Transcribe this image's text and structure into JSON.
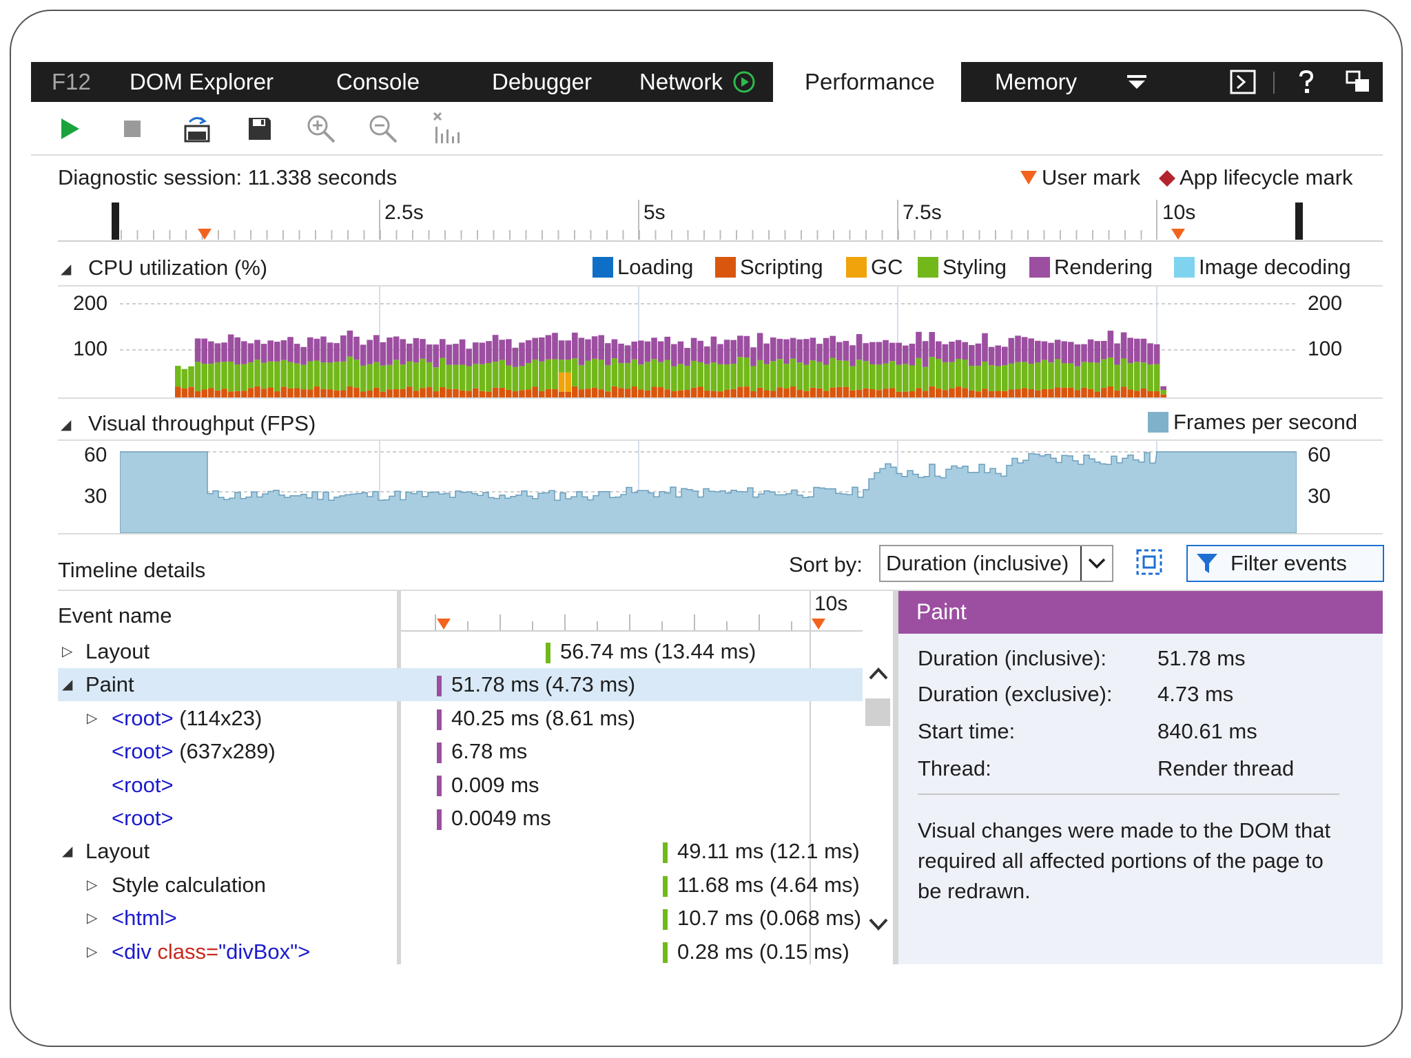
{
  "tabs": {
    "f12": "F12",
    "dom_explorer": "DOM Explorer",
    "console": "Console",
    "debugger": "Debugger",
    "network": "Network",
    "performance": "Performance",
    "memory": "Memory"
  },
  "header": {
    "session_title": "Diagnostic session: 11.338 seconds",
    "user_mark": "User mark",
    "app_mark": "App lifecycle mark"
  },
  "ruler": {
    "ticks": [
      "2.5s",
      "5s",
      "7.5s",
      "10s"
    ]
  },
  "cpu": {
    "title": "CPU utilization (%)",
    "legend": [
      {
        "label": "Loading",
        "color": "#0f6fc6"
      },
      {
        "label": "Scripting",
        "color": "#d9560e"
      },
      {
        "label": "GC",
        "color": "#f0a30a"
      },
      {
        "label": "Styling",
        "color": "#72b81b"
      },
      {
        "label": "Rendering",
        "color": "#9c4fa0"
      },
      {
        "label": "Image decoding",
        "color": "#7fd3ee"
      }
    ],
    "y_labels": [
      "200",
      "100"
    ]
  },
  "fps": {
    "title": "Visual throughput (FPS)",
    "legend_label": "Frames per second",
    "legend_color": "#7fb1cb",
    "y_labels": [
      "60",
      "30"
    ]
  },
  "details": {
    "title": "Timeline details",
    "sort_label": "Sort by:",
    "sort_value": "Duration (inclusive)",
    "filter_label": "Filter events",
    "event_name_header": "Event name",
    "timeline_tick": "10s",
    "rows": [
      {
        "indent": 0,
        "tri": "▷",
        "text": "Layout",
        "bar": "56.74 ms (13.44 ms)",
        "color": "#72b81b"
      },
      {
        "indent": 0,
        "tri": "◢",
        "text": "Paint",
        "bar": "51.78 ms (4.73 ms)",
        "color": "#9c4fa0"
      },
      {
        "indent": 1,
        "tri": "▷",
        "tag": "<root>",
        "extra": " (114x23)",
        "bar": "40.25 ms (8.61 ms)",
        "color": "#9c4fa0"
      },
      {
        "indent": 1,
        "tri": "",
        "tag": "<root>",
        "extra": " (637x289)",
        "bar": "6.78 ms",
        "color": "#9c4fa0"
      },
      {
        "indent": 1,
        "tri": "",
        "tag": "<root>",
        "extra": "",
        "bar": "0.009 ms",
        "color": "#9c4fa0"
      },
      {
        "indent": 1,
        "tri": "",
        "tag": "<root>",
        "extra": "",
        "bar": "0.0049 ms",
        "color": "#9c4fa0"
      },
      {
        "indent": 0,
        "tri": "◢",
        "text": "Layout",
        "bar": "49.11 ms (12.1 ms)",
        "color": "#72b81b"
      },
      {
        "indent": 1,
        "tri": "▷",
        "text": "Style calculation",
        "bar": "11.68 ms (4.64 ms)",
        "color": "#72b81b"
      },
      {
        "indent": 1,
        "tri": "▷",
        "tag": "<html>",
        "extra": "",
        "bar": "10.7 ms (0.068 ms)",
        "color": "#72b81b"
      },
      {
        "indent": 1,
        "tri": "▷",
        "tag_open": "<div ",
        "attr": "class=",
        "val": "\"divBox\"",
        "tag_close": ">",
        "bar": "0.28 ms (0.15 ms)",
        "color": "#72b81b"
      }
    ]
  },
  "panel": {
    "title": "Paint",
    "header_color": "#9c4fa0",
    "fields": [
      {
        "label": "Duration (inclusive):",
        "value": "51.78 ms"
      },
      {
        "label": "Duration (exclusive):",
        "value": "4.73 ms"
      },
      {
        "label": "Start time:",
        "value": "840.61 ms"
      },
      {
        "label": "Thread:",
        "value": "Render thread"
      }
    ],
    "description": "Visual changes were made to the DOM that required all affected portions of the page to be redrawn."
  }
}
